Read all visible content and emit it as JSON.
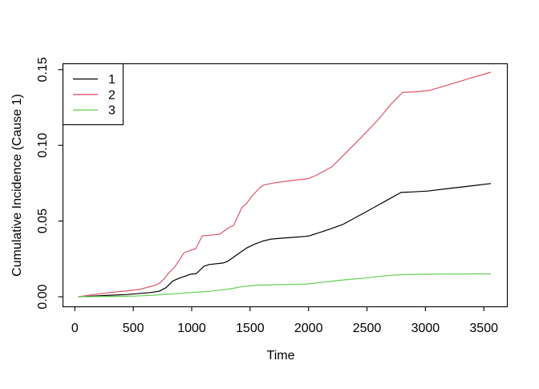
{
  "chart_data": {
    "type": "line",
    "title": "",
    "xlabel": "Time",
    "ylabel": "Cumulative Incidence (Cause 1)",
    "xlim": [
      0,
      3560
    ],
    "ylim": [
      0,
      0.15
    ],
    "grid": false,
    "x_ticks": [
      0,
      500,
      1000,
      1500,
      2000,
      2500,
      3000,
      3500
    ],
    "x_tick_labels": [
      "0",
      "500",
      "1000",
      "1500",
      "2000",
      "2500",
      "3000",
      "3500"
    ],
    "y_ticks": [
      0,
      0.05,
      0.1,
      0.15
    ],
    "y_tick_labels": [
      "0.00",
      "0.05",
      "0.10",
      "0.15"
    ],
    "legend": {
      "position": "topleft",
      "entries": [
        {
          "label": "1",
          "color": "#000000"
        },
        {
          "label": "2",
          "color": "#DF536B"
        },
        {
          "label": "3",
          "color": "#61D04F"
        }
      ]
    },
    "series": [
      {
        "name": "1",
        "color": "#000000",
        "points": [
          [
            30,
            0
          ],
          [
            150,
            0.0004
          ],
          [
            300,
            0.001
          ],
          [
            450,
            0.0015
          ],
          [
            560,
            0.0022
          ],
          [
            650,
            0.0028
          ],
          [
            720,
            0.0036
          ],
          [
            780,
            0.006
          ],
          [
            840,
            0.0105
          ],
          [
            900,
            0.0125
          ],
          [
            945,
            0.0136
          ],
          [
            990,
            0.0149
          ],
          [
            1040,
            0.0153
          ],
          [
            1105,
            0.0202
          ],
          [
            1150,
            0.0213
          ],
          [
            1270,
            0.0223
          ],
          [
            1310,
            0.0235
          ],
          [
            1400,
            0.0285
          ],
          [
            1470,
            0.0322
          ],
          [
            1540,
            0.0348
          ],
          [
            1610,
            0.0368
          ],
          [
            1680,
            0.0381
          ],
          [
            1800,
            0.0389
          ],
          [
            1900,
            0.0394
          ],
          [
            2000,
            0.0401
          ],
          [
            2150,
            0.0438
          ],
          [
            2290,
            0.0476
          ],
          [
            2400,
            0.0522
          ],
          [
            2500,
            0.0564
          ],
          [
            2600,
            0.0607
          ],
          [
            2700,
            0.065
          ],
          [
            2792,
            0.0689
          ],
          [
            2900,
            0.0693
          ],
          [
            3020,
            0.0698
          ],
          [
            3200,
            0.0715
          ],
          [
            3400,
            0.0733
          ],
          [
            3560,
            0.0748
          ]
        ]
      },
      {
        "name": "2",
        "color": "#DF536B",
        "points": [
          [
            30,
            0
          ],
          [
            150,
            0.0013
          ],
          [
            300,
            0.0028
          ],
          [
            450,
            0.0039
          ],
          [
            560,
            0.005
          ],
          [
            640,
            0.0066
          ],
          [
            700,
            0.0079
          ],
          [
            730,
            0.0093
          ],
          [
            765,
            0.0118
          ],
          [
            800,
            0.0155
          ],
          [
            850,
            0.0192
          ],
          [
            900,
            0.0248
          ],
          [
            935,
            0.0292
          ],
          [
            1000,
            0.0309
          ],
          [
            1035,
            0.0318
          ],
          [
            1090,
            0.0402
          ],
          [
            1160,
            0.0407
          ],
          [
            1240,
            0.0413
          ],
          [
            1320,
            0.0458
          ],
          [
            1360,
            0.0472
          ],
          [
            1430,
            0.059
          ],
          [
            1465,
            0.0612
          ],
          [
            1520,
            0.0668
          ],
          [
            1580,
            0.0718
          ],
          [
            1615,
            0.0738
          ],
          [
            1700,
            0.0751
          ],
          [
            1800,
            0.0762
          ],
          [
            1900,
            0.0771
          ],
          [
            1990,
            0.0779
          ],
          [
            2060,
            0.08
          ],
          [
            2200,
            0.0858
          ],
          [
            2280,
            0.092
          ],
          [
            2450,
            0.1052
          ],
          [
            2600,
            0.1173
          ],
          [
            2700,
            0.1267
          ],
          [
            2805,
            0.135
          ],
          [
            2900,
            0.1353
          ],
          [
            3030,
            0.1362
          ],
          [
            3200,
            0.14
          ],
          [
            3400,
            0.1447
          ],
          [
            3560,
            0.1483
          ]
        ]
      },
      {
        "name": "3",
        "color": "#61D04F",
        "points": [
          [
            30,
            0
          ],
          [
            300,
            0.0002
          ],
          [
            500,
            0.0004
          ],
          [
            650,
            0.0009
          ],
          [
            730,
            0.0014
          ],
          [
            900,
            0.0022
          ],
          [
            1000,
            0.0028
          ],
          [
            1150,
            0.0036
          ],
          [
            1250,
            0.0044
          ],
          [
            1350,
            0.0055
          ],
          [
            1420,
            0.0065
          ],
          [
            1500,
            0.0072
          ],
          [
            1560,
            0.0077
          ],
          [
            1700,
            0.0079
          ],
          [
            1850,
            0.0081
          ],
          [
            1990,
            0.0084
          ],
          [
            2100,
            0.0094
          ],
          [
            2200,
            0.0103
          ],
          [
            2300,
            0.0111
          ],
          [
            2470,
            0.0123
          ],
          [
            2600,
            0.0134
          ],
          [
            2720,
            0.0142
          ],
          [
            2800,
            0.0146
          ],
          [
            3000,
            0.0149
          ],
          [
            3200,
            0.015
          ],
          [
            3400,
            0.0151
          ],
          [
            3560,
            0.0151
          ]
        ]
      }
    ]
  }
}
